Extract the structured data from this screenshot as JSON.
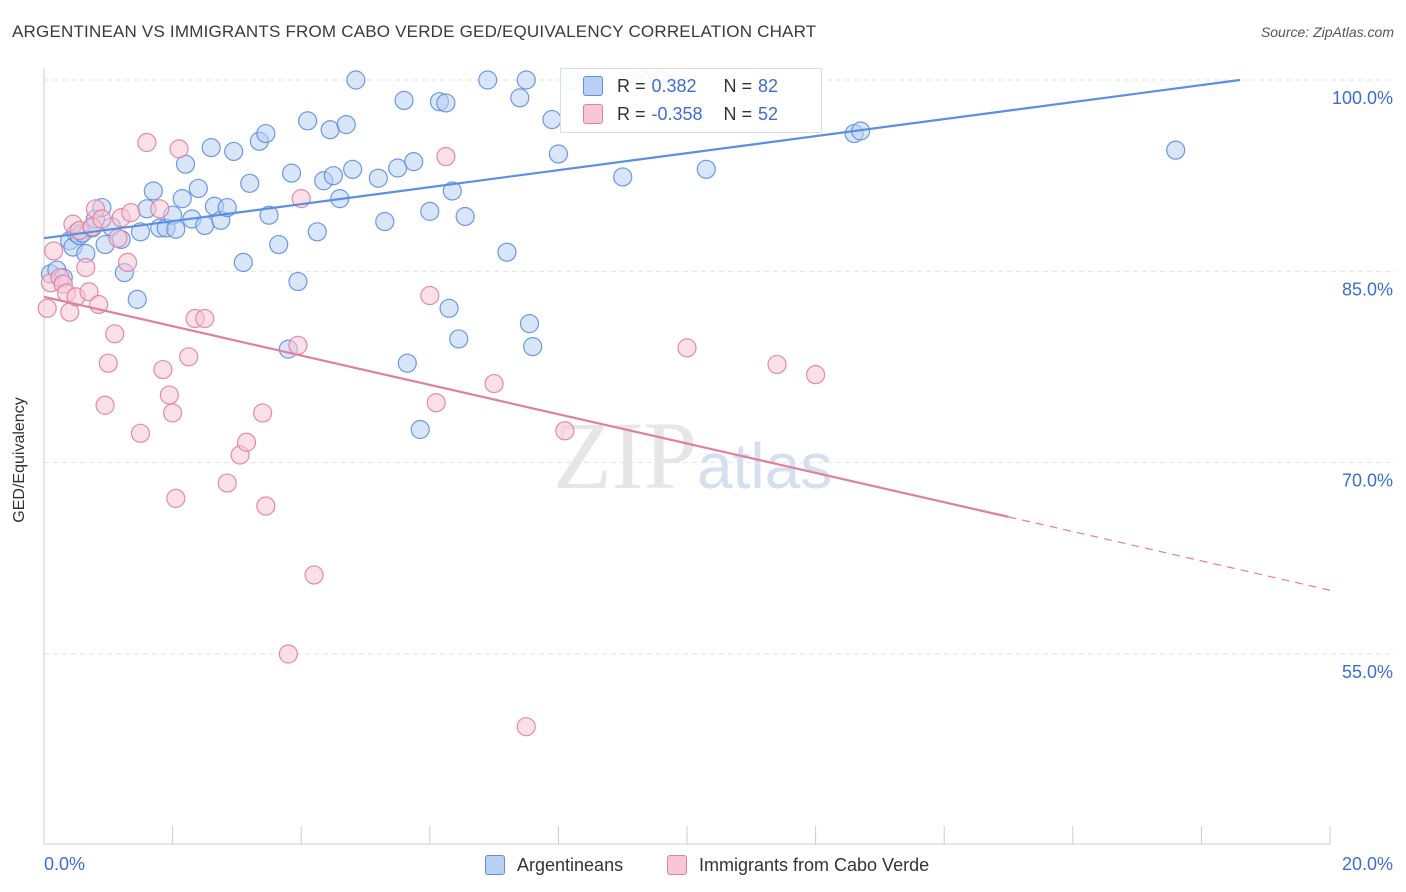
{
  "title": "ARGENTINEAN VS IMMIGRANTS FROM CABO VERDE GED/EQUIVALENCY CORRELATION CHART",
  "source": "Source: ZipAtlas.com",
  "watermark": {
    "zip": "ZIP",
    "atlas": "atlas"
  },
  "legend": {
    "rows": [
      {
        "r_label": "R =",
        "r_value": "0.382",
        "n_label": "N =",
        "n_value": "82",
        "color": "#5b8fe0",
        "fill": "#b9d0f4"
      },
      {
        "r_label": "R =",
        "r_value": "-0.358",
        "n_label": "N =",
        "n_value": "52",
        "color": "#e07fa0",
        "fill": "#f8c7d6"
      }
    ]
  },
  "bottom_legend": [
    {
      "label": "Argentineans",
      "color": "#5b8fe0",
      "fill": "#b9d0f4"
    },
    {
      "label": "Immigrants from Cabo Verde",
      "color": "#e07fa0",
      "fill": "#f8c7d6"
    }
  ],
  "chart_data": {
    "type": "scatter",
    "title": "ARGENTINEAN VS IMMIGRANTS FROM CABO VERDE GED/EQUIVALENCY CORRELATION CHART",
    "xlabel": "",
    "ylabel": "GED/Equivalency",
    "xlim": [
      0,
      20
    ],
    "ylim": [
      40,
      101
    ],
    "x_tick_labels": [
      "0.0%",
      "20.0%"
    ],
    "y_ticks": [
      55,
      70,
      85,
      100
    ],
    "y_tick_labels": [
      "55.0%",
      "70.0%",
      "85.0%",
      "100.0%"
    ],
    "grid": true,
    "legend_position": "top-center",
    "series": [
      {
        "name": "Argentineans",
        "color": "#5b8fe0",
        "fill": "#b9d0f4",
        "trend": {
          "x": [
            0,
            18.6
          ],
          "y": [
            87.6,
            100.0
          ],
          "solid_to": 18.6
        },
        "points": [
          [
            0.1,
            84.8
          ],
          [
            0.2,
            85.1
          ],
          [
            0.3,
            84.5
          ],
          [
            0.4,
            87.4
          ],
          [
            0.45,
            86.9
          ],
          [
            0.5,
            88.0
          ],
          [
            0.55,
            87.8
          ],
          [
            0.6,
            88.0
          ],
          [
            0.65,
            86.4
          ],
          [
            0.75,
            88.4
          ],
          [
            0.8,
            89.1
          ],
          [
            0.9,
            90.0
          ],
          [
            0.95,
            87.1
          ],
          [
            1.05,
            88.5
          ],
          [
            1.2,
            87.5
          ],
          [
            1.25,
            84.9
          ],
          [
            1.45,
            82.8
          ],
          [
            1.5,
            88.1
          ],
          [
            1.6,
            89.9
          ],
          [
            1.7,
            91.3
          ],
          [
            1.8,
            88.4
          ],
          [
            1.9,
            88.4
          ],
          [
            2.0,
            89.4
          ],
          [
            2.05,
            88.3
          ],
          [
            2.15,
            90.7
          ],
          [
            2.2,
            93.4
          ],
          [
            2.3,
            89.1
          ],
          [
            2.4,
            91.5
          ],
          [
            2.5,
            88.6
          ],
          [
            2.6,
            94.7
          ],
          [
            2.65,
            90.1
          ],
          [
            2.75,
            89.0
          ],
          [
            2.85,
            90.0
          ],
          [
            2.95,
            94.4
          ],
          [
            3.1,
            85.7
          ],
          [
            3.2,
            91.9
          ],
          [
            3.35,
            95.2
          ],
          [
            3.45,
            95.8
          ],
          [
            3.5,
            89.4
          ],
          [
            3.65,
            87.1
          ],
          [
            3.8,
            78.9
          ],
          [
            3.85,
            92.7
          ],
          [
            3.95,
            84.2
          ],
          [
            4.1,
            96.8
          ],
          [
            4.25,
            88.1
          ],
          [
            4.35,
            92.1
          ],
          [
            4.45,
            96.1
          ],
          [
            4.5,
            92.5
          ],
          [
            4.6,
            90.7
          ],
          [
            4.7,
            96.5
          ],
          [
            4.8,
            93.0
          ],
          [
            4.85,
            100.0
          ],
          [
            5.2,
            92.3
          ],
          [
            5.3,
            88.9
          ],
          [
            5.5,
            93.1
          ],
          [
            5.6,
            98.4
          ],
          [
            5.65,
            77.8
          ],
          [
            5.75,
            93.6
          ],
          [
            5.85,
            72.6
          ],
          [
            6.0,
            89.7
          ],
          [
            6.15,
            98.3
          ],
          [
            6.25,
            98.2
          ],
          [
            6.3,
            82.1
          ],
          [
            6.35,
            91.3
          ],
          [
            6.45,
            79.7
          ],
          [
            6.55,
            89.3
          ],
          [
            6.9,
            100.0
          ],
          [
            7.2,
            86.5
          ],
          [
            7.4,
            98.6
          ],
          [
            7.5,
            100.0
          ],
          [
            7.55,
            80.9
          ],
          [
            7.6,
            79.1
          ],
          [
            7.9,
            96.9
          ],
          [
            8.0,
            94.2
          ],
          [
            8.2,
            100.0
          ],
          [
            9.0,
            92.4
          ],
          [
            9.3,
            100.0
          ],
          [
            9.6,
            100.0
          ],
          [
            10.3,
            93.0
          ],
          [
            12.6,
            95.8
          ],
          [
            12.7,
            96.0
          ],
          [
            17.6,
            94.5
          ]
        ]
      },
      {
        "name": "Immigrants from Cabo Verde",
        "color": "#e07fa0",
        "fill": "#f8c7d6",
        "trend": {
          "x": [
            0,
            20.0
          ],
          "y": [
            83.0,
            60.0
          ],
          "solid_to": 15.0
        },
        "points": [
          [
            0.05,
            82.1
          ],
          [
            0.1,
            84.1
          ],
          [
            0.15,
            86.6
          ],
          [
            0.25,
            84.5
          ],
          [
            0.3,
            84.0
          ],
          [
            0.35,
            83.3
          ],
          [
            0.4,
            81.8
          ],
          [
            0.45,
            88.7
          ],
          [
            0.5,
            83.0
          ],
          [
            0.55,
            88.2
          ],
          [
            0.65,
            85.3
          ],
          [
            0.7,
            83.4
          ],
          [
            0.75,
            88.5
          ],
          [
            0.8,
            89.9
          ],
          [
            0.85,
            82.4
          ],
          [
            0.9,
            89.1
          ],
          [
            0.95,
            74.5
          ],
          [
            1.0,
            77.8
          ],
          [
            1.1,
            80.1
          ],
          [
            1.15,
            87.6
          ],
          [
            1.2,
            89.2
          ],
          [
            1.3,
            85.7
          ],
          [
            1.35,
            89.6
          ],
          [
            1.5,
            72.3
          ],
          [
            1.6,
            95.1
          ],
          [
            1.8,
            89.9
          ],
          [
            1.85,
            77.3
          ],
          [
            1.95,
            75.3
          ],
          [
            2.0,
            73.9
          ],
          [
            2.05,
            67.2
          ],
          [
            2.1,
            94.6
          ],
          [
            2.25,
            78.3
          ],
          [
            2.35,
            81.3
          ],
          [
            2.5,
            81.3
          ],
          [
            2.85,
            68.4
          ],
          [
            3.05,
            70.6
          ],
          [
            3.15,
            71.6
          ],
          [
            3.4,
            73.9
          ],
          [
            3.45,
            66.6
          ],
          [
            3.8,
            55.0
          ],
          [
            3.95,
            79.2
          ],
          [
            4.0,
            90.7
          ],
          [
            4.2,
            61.2
          ],
          [
            6.0,
            83.1
          ],
          [
            6.1,
            74.7
          ],
          [
            6.25,
            94.0
          ],
          [
            7.0,
            76.2
          ],
          [
            7.5,
            49.3
          ],
          [
            8.1,
            72.5
          ],
          [
            10.0,
            79.0
          ],
          [
            11.4,
            77.7
          ],
          [
            12.0,
            76.9
          ]
        ]
      }
    ]
  }
}
